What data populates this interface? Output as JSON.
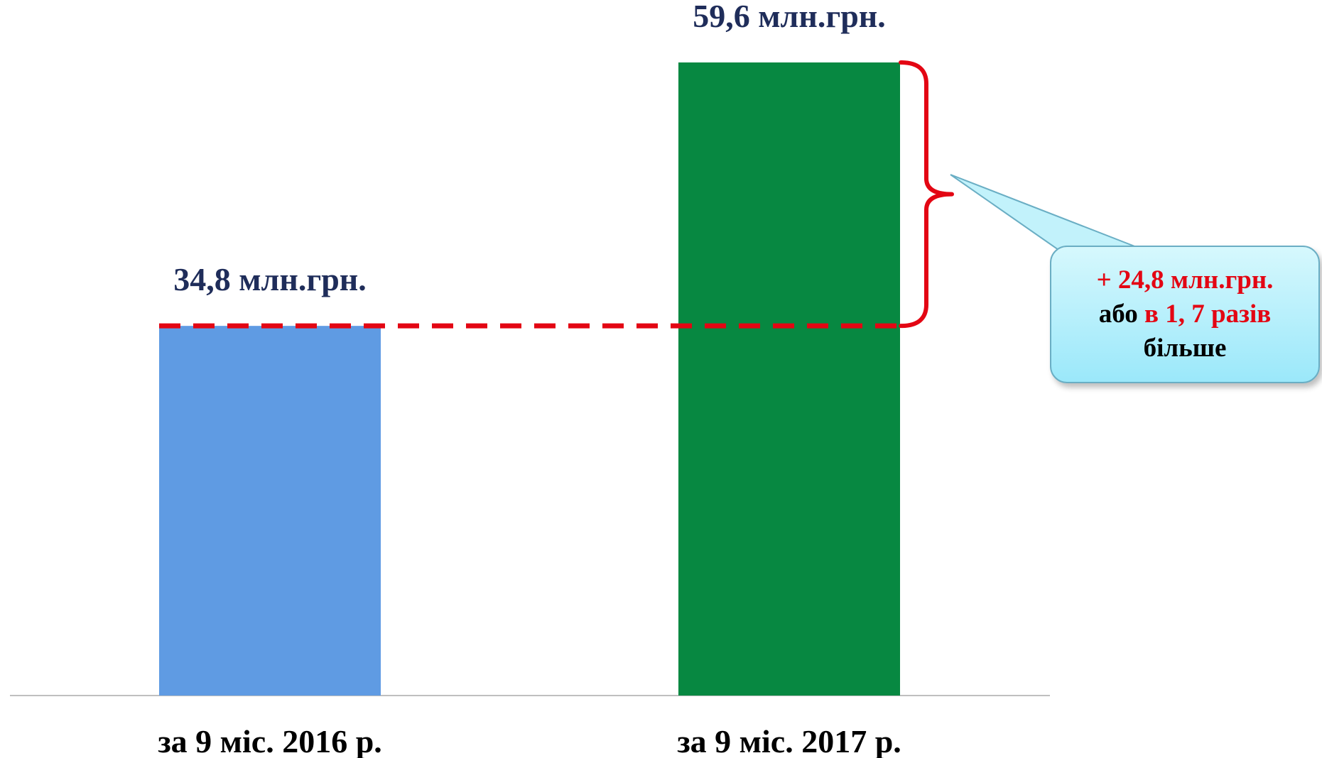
{
  "chart_data": {
    "type": "bar",
    "categories": [
      "за 9 міс. 2016 р.",
      "за 9 міс. 2017 р."
    ],
    "values": [
      34.8,
      59.6
    ],
    "value_labels": [
      "34,8 млн.грн.",
      "59,6 млн.грн."
    ],
    "unit": "млн.грн.",
    "ylim": [
      0,
      59.6
    ],
    "grid": false,
    "colors": [
      "#5f9be3",
      "#078841"
    ]
  },
  "annotation": {
    "increase": "+ 24,8 млн.грн.",
    "or_word": "або",
    "ratio": "в 1, 7 разів",
    "more": "більше",
    "accent_color": "#e30613"
  }
}
